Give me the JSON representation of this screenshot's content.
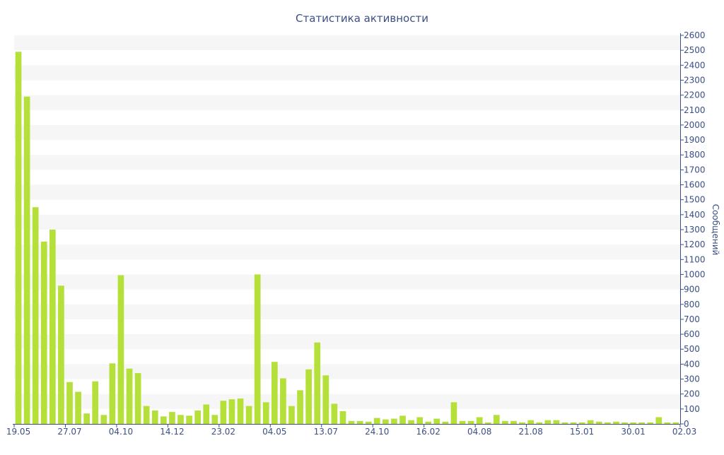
{
  "chart_data": {
    "type": "bar",
    "title": "Статистика активности",
    "ylabel": "Сообщений",
    "ylim": [
      0,
      2600
    ],
    "y_ticks": [
      0,
      100,
      200,
      300,
      400,
      500,
      600,
      700,
      800,
      900,
      1000,
      1100,
      1200,
      1300,
      1400,
      1500,
      1600,
      1700,
      1800,
      1900,
      2000,
      2100,
      2200,
      2300,
      2400,
      2500,
      2600
    ],
    "y_axis_position": "right",
    "x_tick_labels": [
      {
        "index": 0,
        "label": "19.05"
      },
      {
        "index": 6,
        "label": "27.07"
      },
      {
        "index": 12,
        "label": "04.10"
      },
      {
        "index": 18,
        "label": "14.12"
      },
      {
        "index": 24,
        "label": "23.02"
      },
      {
        "index": 30,
        "label": "04.05"
      },
      {
        "index": 36,
        "label": "13.07"
      },
      {
        "index": 42,
        "label": "24.10"
      },
      {
        "index": 48,
        "label": "16.02"
      },
      {
        "index": 54,
        "label": "04.08"
      },
      {
        "index": 60,
        "label": "21.08"
      },
      {
        "index": 66,
        "label": "15.01"
      },
      {
        "index": 72,
        "label": "30.01"
      },
      {
        "index": 78,
        "label": "02.03"
      }
    ],
    "values": [
      2490,
      2190,
      1450,
      1220,
      1300,
      925,
      280,
      215,
      70,
      285,
      60,
      405,
      995,
      370,
      340,
      120,
      90,
      50,
      80,
      60,
      55,
      90,
      130,
      60,
      155,
      165,
      170,
      120,
      1000,
      145,
      415,
      305,
      120,
      225,
      365,
      545,
      325,
      135,
      85,
      20,
      20,
      15,
      40,
      30,
      35,
      55,
      25,
      45,
      15,
      35,
      15,
      145,
      20,
      20,
      45,
      10,
      60,
      20,
      20,
      10,
      25,
      10,
      25,
      25,
      10,
      10,
      10,
      25,
      15,
      10,
      15,
      10,
      10,
      10,
      10,
      45,
      10,
      10
    ],
    "bar_color": "#b5e03a",
    "band_color": "#f6f6f6",
    "text_color": "#3b4f86",
    "axis_color": "#3b4f86",
    "grid": "horizontal alternating bands"
  }
}
